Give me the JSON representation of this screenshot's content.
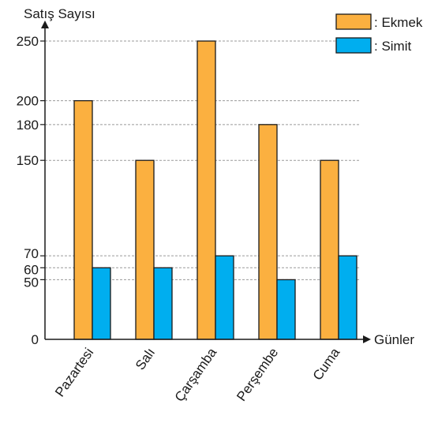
{
  "chart_data": {
    "type": "bar",
    "ylabel": "Satış Sayısı",
    "xlabel": "Günler",
    "categories": [
      "Pazartesi",
      "Salı",
      "Çarşamba",
      "Perşembe",
      "Cuma"
    ],
    "series": [
      {
        "name": ": Ekmek",
        "color": "#fbb040",
        "values": [
          200,
          150,
          250,
          180,
          150
        ]
      },
      {
        "name": ": Simit",
        "color": "#00aeef",
        "values": [
          60,
          60,
          70,
          50,
          70
        ]
      }
    ],
    "yticks": [
      0,
      50,
      60,
      70,
      150,
      180,
      200,
      250
    ],
    "ylim": [
      0,
      250
    ],
    "grid": "dashed horizontal lines at y tick values",
    "legend": "top-right"
  }
}
